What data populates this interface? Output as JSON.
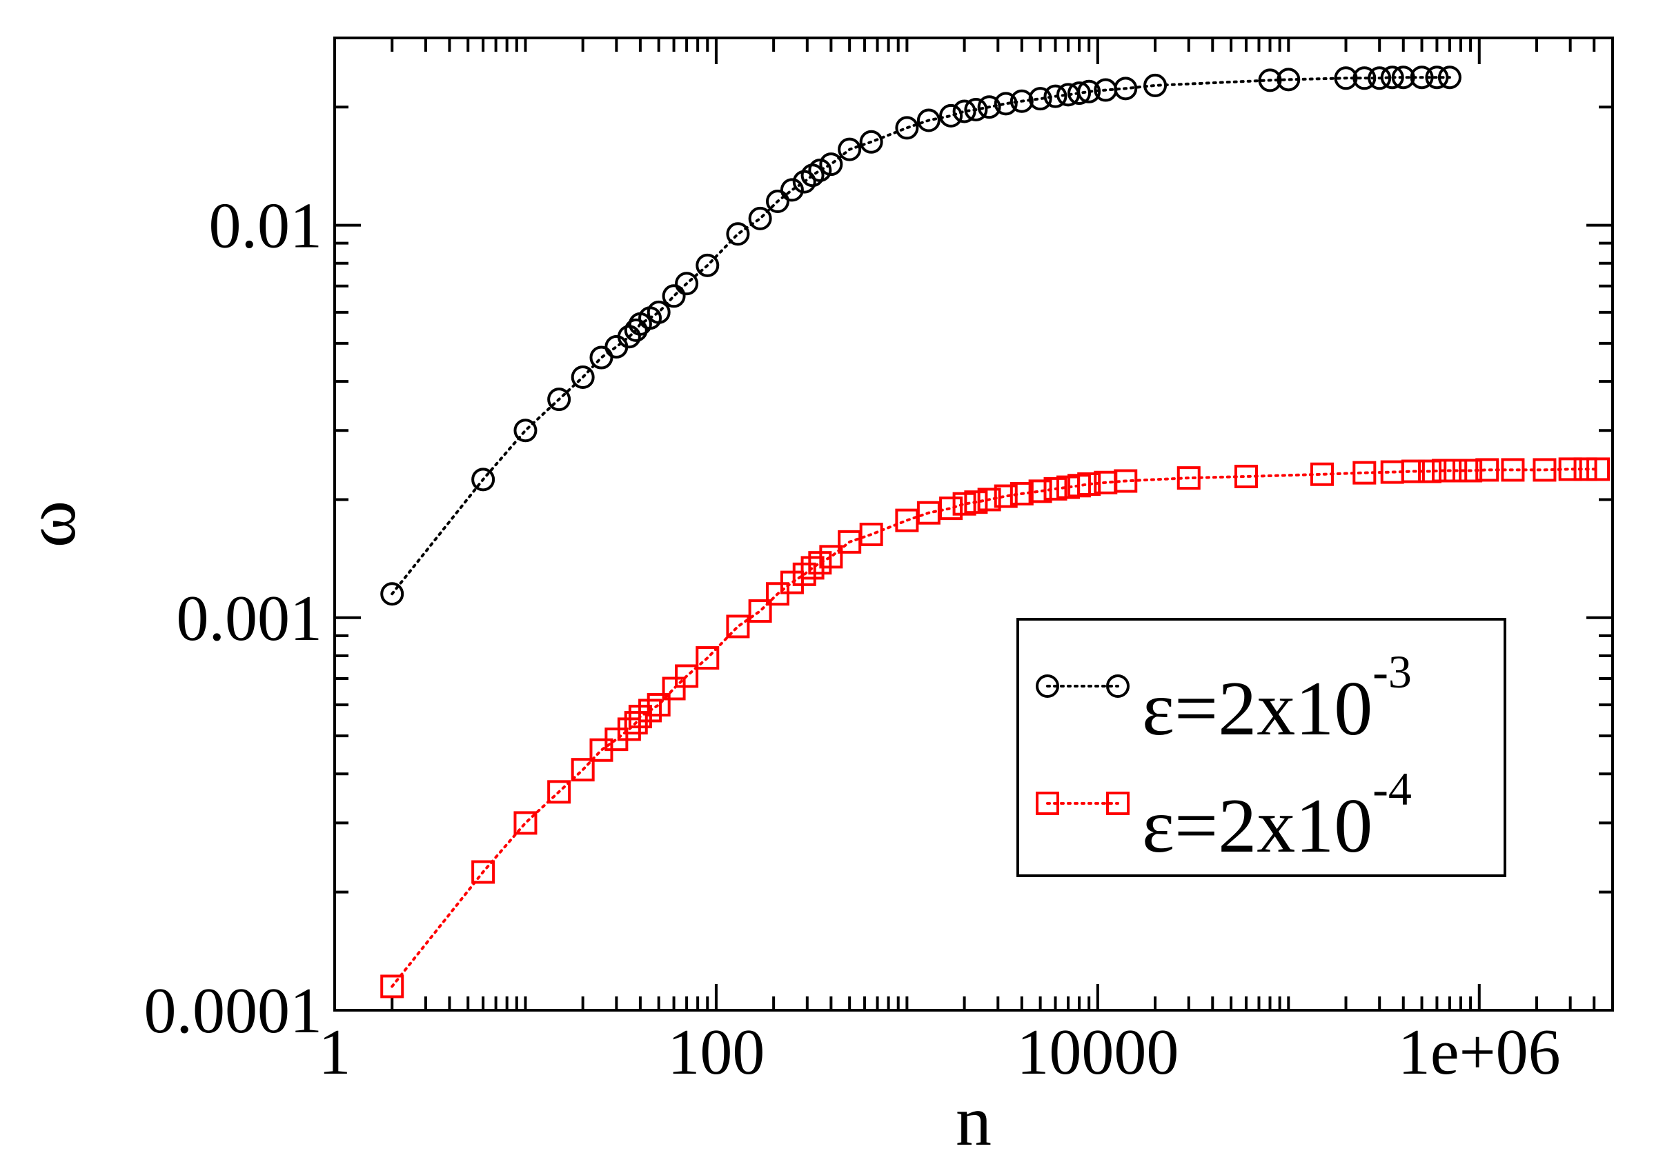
{
  "chart_data": {
    "type": "scatter",
    "title": "",
    "xlabel": "n",
    "ylabel": "ω",
    "x_scale": "log",
    "y_scale": "log",
    "xlim": [
      1,
      5000000
    ],
    "ylim": [
      0.0001,
      0.03
    ],
    "x_ticks": [
      {
        "value": 1,
        "label": "1"
      },
      {
        "value": 100,
        "label": "100"
      },
      {
        "value": 10000,
        "label": "10000"
      },
      {
        "value": 1000000,
        "label": "1e+06"
      }
    ],
    "y_ticks": [
      {
        "value": 0.0001,
        "label": "0.0001"
      },
      {
        "value": 0.001,
        "label": "0.001"
      },
      {
        "value": 0.01,
        "label": "0.01"
      }
    ],
    "grid": false,
    "legend_position": "lower-right",
    "series": [
      {
        "name": "ε=2x10-3",
        "legend_main": "ε=2x10",
        "legend_exp": "-3",
        "color": "#000000",
        "marker": "circle",
        "line": "dotted",
        "x": [
          2,
          6,
          10,
          15,
          20,
          25,
          30,
          35,
          38,
          40,
          45,
          50,
          60,
          70,
          90,
          130,
          170,
          210,
          250,
          290,
          320,
          350,
          400,
          500,
          650,
          1000,
          1300,
          1700,
          2000,
          2300,
          2700,
          3300,
          4000,
          5000,
          6000,
          7000,
          8000,
          9000,
          11000,
          14000,
          20000,
          80000,
          100000,
          200000,
          250000,
          300000,
          350000,
          400000,
          500000,
          600000,
          700000
        ],
        "y": [
          0.00115,
          0.00225,
          0.003,
          0.0036,
          0.0041,
          0.0046,
          0.0049,
          0.0052,
          0.0054,
          0.0056,
          0.0058,
          0.006,
          0.0066,
          0.0071,
          0.0079,
          0.0095,
          0.0104,
          0.0115,
          0.0123,
          0.0129,
          0.0134,
          0.0138,
          0.0143,
          0.0156,
          0.0163,
          0.0177,
          0.0185,
          0.019,
          0.0195,
          0.0197,
          0.02,
          0.0204,
          0.0207,
          0.021,
          0.0213,
          0.0215,
          0.0217,
          0.0219,
          0.0221,
          0.0223,
          0.0227,
          0.0234,
          0.0235,
          0.0237,
          0.0237,
          0.0237,
          0.0238,
          0.0238,
          0.0238,
          0.0238,
          0.0238
        ]
      },
      {
        "name": "ε=2x10-4",
        "legend_main": "ε=2x10",
        "legend_exp": "-4",
        "color": "#ff0000",
        "marker": "square",
        "line": "dotted",
        "x": [
          2,
          6,
          10,
          15,
          20,
          25,
          30,
          35,
          38,
          40,
          45,
          50,
          60,
          70,
          90,
          130,
          170,
          210,
          250,
          290,
          320,
          350,
          400,
          500,
          650,
          1000,
          1300,
          1700,
          2000,
          2300,
          2700,
          3300,
          4000,
          5000,
          6000,
          7000,
          8000,
          9000,
          11000,
          14000,
          30000,
          60000,
          150000,
          250000,
          350000,
          450000,
          550000,
          650000,
          750000,
          900000,
          1100000,
          1500000,
          2200000,
          3000000,
          3600000,
          4200000
        ],
        "y": [
          0.000115,
          0.000225,
          0.0003,
          0.00036,
          0.00041,
          0.00046,
          0.00049,
          0.00052,
          0.00054,
          0.00056,
          0.00058,
          0.0006,
          0.00066,
          0.00071,
          0.00079,
          0.00095,
          0.00104,
          0.00115,
          0.00123,
          0.00129,
          0.00134,
          0.00138,
          0.00143,
          0.00156,
          0.00163,
          0.00177,
          0.00185,
          0.0019,
          0.00195,
          0.00197,
          0.002,
          0.00204,
          0.00207,
          0.0021,
          0.00213,
          0.00215,
          0.00217,
          0.00219,
          0.00221,
          0.00223,
          0.00227,
          0.00229,
          0.00232,
          0.00234,
          0.00235,
          0.00236,
          0.00236,
          0.00237,
          0.00237,
          0.00237,
          0.00238,
          0.00238,
          0.00238,
          0.00239,
          0.00239,
          0.00239
        ]
      }
    ]
  }
}
